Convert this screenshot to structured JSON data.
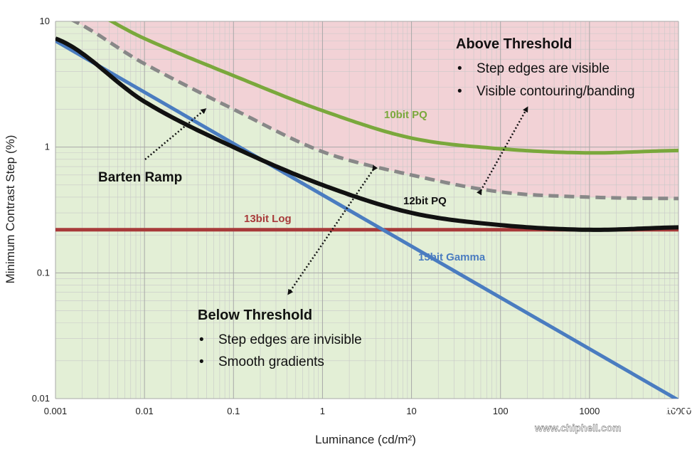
{
  "chart_data": {
    "type": "line",
    "x_scale": "log",
    "y_scale": "log",
    "xlim": [
      0.001,
      10000
    ],
    "ylim": [
      0.01,
      10
    ],
    "xlabel": "Luminance (cd/m²)",
    "ylabel": "Minimum Contrast Step (%)",
    "x_ticks": [
      "0.001",
      "0.01",
      "0.1",
      "1",
      "10",
      "100",
      "1000",
      "10000"
    ],
    "y_ticks": [
      "0.01",
      "0.1",
      "1",
      "10"
    ],
    "grid": true,
    "regions": {
      "above": {
        "title": "Above Threshold",
        "bullets": [
          "Step edges are visible",
          "Visible contouring/banding"
        ],
        "color": "#f2d2d6"
      },
      "below": {
        "title": "Below Threshold",
        "bullets": [
          "Step edges are invisible",
          "Smooth gradients"
        ],
        "color": "#e3efd6"
      }
    },
    "series": [
      {
        "name": "10bit PQ",
        "color": "#7aa83c",
        "style": "solid",
        "x": [
          0.001,
          0.01,
          0.1,
          1,
          10,
          100,
          1000,
          10000
        ],
        "y": [
          16.0,
          7.3,
          3.7,
          1.95,
          1.18,
          0.97,
          0.9,
          0.94
        ]
      },
      {
        "name": "",
        "color": "#888888",
        "style": "dashed",
        "x": [
          0.001,
          0.01,
          0.1,
          1,
          10,
          100,
          1000,
          10000
        ],
        "y": [
          11.5,
          4.6,
          2.0,
          0.92,
          0.6,
          0.44,
          0.4,
          0.39
        ]
      },
      {
        "name": "12bit PQ",
        "color": "#111111",
        "style": "solid",
        "x": [
          0.001,
          0.01,
          0.1,
          1,
          10,
          100,
          1000,
          10000
        ],
        "y": [
          7.3,
          2.3,
          1.0,
          0.5,
          0.3,
          0.24,
          0.22,
          0.23
        ]
      },
      {
        "name": "13bit Log",
        "color": "#a83a3a",
        "style": "solid",
        "x": [
          0.001,
          10000
        ],
        "y": [
          0.22,
          0.22
        ]
      },
      {
        "name": "15bit Gamma",
        "color": "#4a7cc0",
        "style": "solid",
        "x": [
          0.001,
          10000
        ],
        "y": [
          7.0,
          0.0097
        ]
      }
    ],
    "annotations": [
      {
        "text": "Barten Ramp",
        "color": "#111111"
      }
    ]
  },
  "watermark": {
    "big": "chip hell",
    "url": "www.chiphell.com"
  }
}
